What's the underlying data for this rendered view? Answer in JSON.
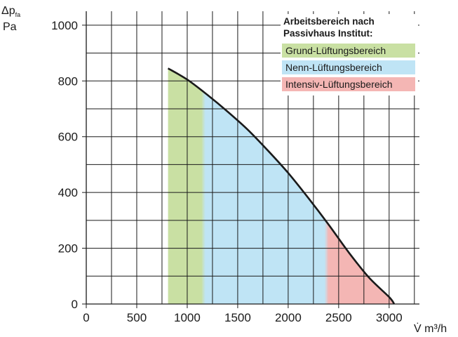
{
  "chart_data": {
    "type": "area",
    "title": "",
    "ylabel": {
      "main": "Δp",
      "sub": "fa",
      "unit": "Pa"
    },
    "xlabel": {
      "symbol": "V̇",
      "unit": "m³/h"
    },
    "xlim": [
      0,
      3300
    ],
    "ylim": [
      0,
      1050
    ],
    "x_ticks": [
      0,
      500,
      1000,
      1500,
      2000,
      2500,
      3000
    ],
    "y_ticks": [
      0,
      200,
      400,
      600,
      800,
      1000
    ],
    "grid": true,
    "curve": {
      "x": [
        810,
        1000,
        1200,
        1400,
        1600,
        1800,
        2000,
        2200,
        2400,
        2600,
        2800,
        3000,
        3050
      ],
      "y": [
        845,
        805,
        750,
        690,
        625,
        550,
        470,
        380,
        285,
        185,
        95,
        25,
        0
      ]
    },
    "regions": [
      {
        "name": "Grund-Lüftungsbereich",
        "x_range": [
          810,
          1160
        ],
        "color": "#c9e0a3"
      },
      {
        "name": "Nenn-Lüftungsbereich",
        "x_range": [
          1160,
          2380
        ],
        "color": "#bfe4f5"
      },
      {
        "name": "Intensiv-Lüftungsbereich",
        "x_range": [
          2380,
          3050
        ],
        "color": "#f4b6b4"
      }
    ],
    "legend": {
      "title_line1": "Arbeitsbereich nach",
      "title_line2": "Passivhaus Institut:",
      "placement": "top-right"
    }
  }
}
